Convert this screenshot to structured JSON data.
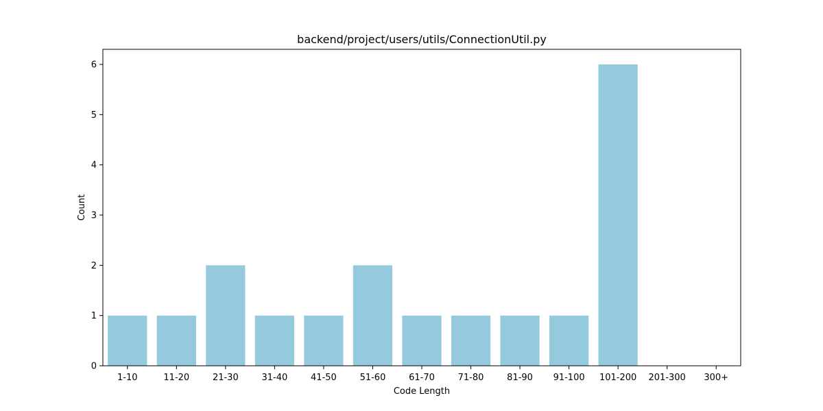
{
  "chart_data": {
    "type": "bar",
    "title": "backend/project/users/utils/ConnectionUtil.py",
    "xlabel": "Code Length",
    "ylabel": "Count",
    "categories": [
      "1-10",
      "11-20",
      "21-30",
      "31-40",
      "41-50",
      "51-60",
      "61-70",
      "71-80",
      "81-90",
      "91-100",
      "101-200",
      "201-300",
      "300+"
    ],
    "values": [
      1,
      1,
      2,
      1,
      1,
      2,
      1,
      1,
      1,
      1,
      6,
      0,
      0
    ],
    "ylim": [
      0,
      6.3
    ],
    "yticks": [
      0,
      1,
      2,
      3,
      4,
      5,
      6
    ],
    "bar_color": "#95c9de",
    "grid": false,
    "legend": "none"
  }
}
